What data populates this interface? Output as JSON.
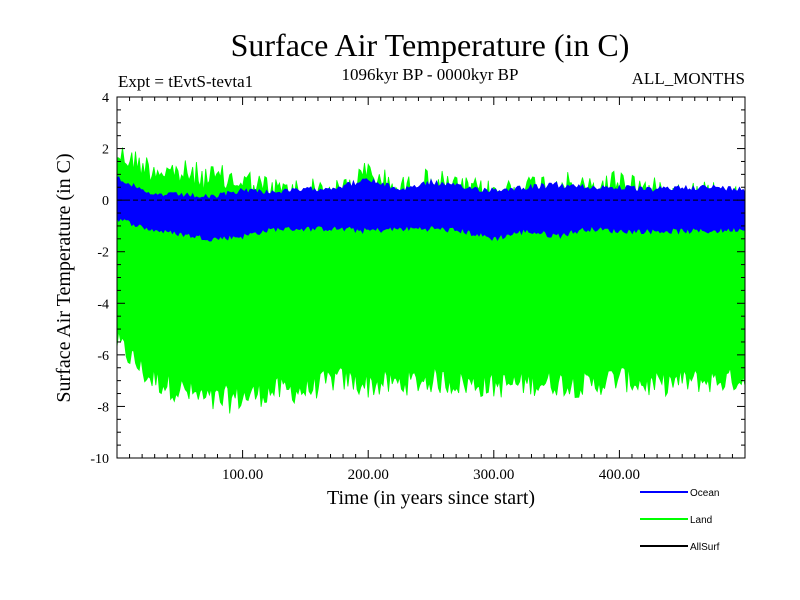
{
  "chart_data": {
    "type": "line",
    "title": "Surface Air Temperature (in C)",
    "subtitle": "1096kyr BP - 0000kyr BP",
    "experiment_label": "Expt = tEvtS-tevta1",
    "months_label": "ALL_MONTHS",
    "xlabel": "Time (in years since start)",
    "ylabel": "Surface Air Temperature (in C)",
    "xlim": [
      0,
      500
    ],
    "ylim": [
      -10,
      4
    ],
    "x_ticks": [
      100,
      200,
      300,
      400
    ],
    "x_tick_labels": [
      "100.00",
      "200.00",
      "300.00",
      "400.00"
    ],
    "y_ticks": [
      -10,
      -8,
      -6,
      -4,
      -2,
      0,
      2,
      4
    ],
    "y_tick_labels": [
      "-10",
      "-8",
      "-6",
      "-4",
      "-2",
      "0",
      "2",
      "4"
    ],
    "zero_line": 0,
    "legend": [
      {
        "name": "Ocean",
        "color": "#0000ff"
      },
      {
        "name": "Land",
        "color": "#00ff00"
      },
      {
        "name": "AllSurf",
        "color": "#000000"
      }
    ],
    "series": [
      {
        "name": "Land",
        "color": "#00ff00",
        "x": [
          0,
          25,
          50,
          75,
          100,
          125,
          150,
          175,
          200,
          225,
          250,
          275,
          300,
          325,
          350,
          375,
          400,
          425,
          450,
          475,
          500
        ],
        "upper": [
          2.3,
          1.8,
          1.6,
          1.4,
          1.3,
          0.9,
          0.9,
          0.8,
          1.6,
          0.9,
          1.3,
          0.9,
          0.8,
          1.0,
          1.2,
          0.9,
          1.3,
          0.9,
          0.8,
          0.8,
          0.5
        ],
        "lower": [
          -6.0,
          -7.4,
          -7.9,
          -8.4,
          -8.2,
          -7.9,
          -7.9,
          -7.4,
          -7.7,
          -7.6,
          -7.5,
          -7.6,
          -7.7,
          -7.6,
          -7.6,
          -7.7,
          -7.4,
          -7.7,
          -7.5,
          -7.5,
          -7.4
        ]
      },
      {
        "name": "Ocean",
        "color": "#0000ff",
        "x": [
          0,
          25,
          50,
          75,
          100,
          125,
          150,
          175,
          200,
          225,
          250,
          275,
          300,
          325,
          350,
          375,
          400,
          425,
          450,
          475,
          500
        ],
        "upper": [
          1.0,
          0.3,
          0.3,
          0.2,
          0.5,
          0.4,
          0.5,
          0.6,
          0.9,
          0.5,
          0.8,
          0.6,
          0.5,
          0.6,
          0.7,
          0.6,
          0.6,
          0.5,
          0.6,
          0.6,
          0.5
        ],
        "lower": [
          -0.8,
          -1.2,
          -1.4,
          -1.6,
          -1.5,
          -1.2,
          -1.2,
          -1.2,
          -1.3,
          -1.2,
          -1.2,
          -1.3,
          -1.6,
          -1.3,
          -1.5,
          -1.2,
          -1.3,
          -1.3,
          -1.3,
          -1.3,
          -1.2
        ]
      }
    ]
  }
}
